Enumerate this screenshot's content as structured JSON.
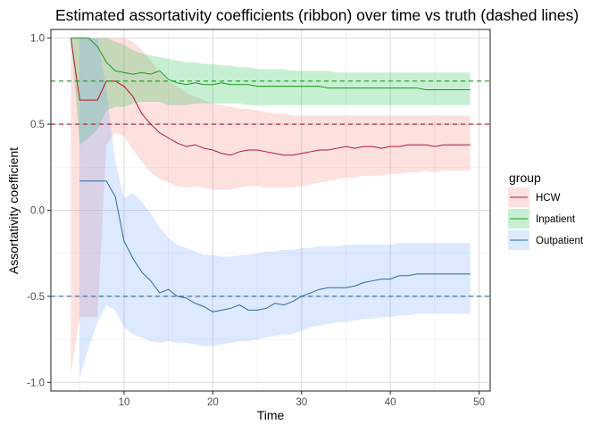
{
  "chart_data": {
    "type": "line",
    "title": "Estimated assortativity coefficients (ribbon) over time vs truth (dashed lines)",
    "xlabel": "Time",
    "ylabel": "Assortativity coefficient",
    "xlim": [
      1.75,
      51.25
    ],
    "ylim": [
      -1.05,
      1.05
    ],
    "x_ticks": [
      10,
      20,
      30,
      40,
      50
    ],
    "y_ticks": [
      -1.0,
      -0.5,
      0.0,
      0.5,
      1.0
    ],
    "x_tick_labels": [
      "10",
      "20",
      "30",
      "40",
      "50"
    ],
    "y_tick_labels": [
      "-1.0",
      "-0.5",
      "0.0",
      "0.5",
      "1.0"
    ],
    "grid": true,
    "legend": {
      "title": "group",
      "placement": "right",
      "entries": [
        "HCW",
        "Inpatient",
        "Outpatient"
      ]
    },
    "x": [
      4,
      5,
      6,
      7,
      8,
      9,
      10,
      11,
      12,
      13,
      14,
      15,
      16,
      17,
      18,
      19,
      20,
      21,
      22,
      23,
      24,
      25,
      26,
      27,
      28,
      29,
      30,
      31,
      32,
      33,
      34,
      35,
      36,
      37,
      38,
      39,
      40,
      41,
      42,
      43,
      44,
      45,
      46,
      47,
      48,
      49
    ],
    "series": [
      {
        "name": "HCW",
        "color": "#B2182B",
        "fill": "#F8766D",
        "mean": [
          1.0,
          0.64,
          0.64,
          0.64,
          0.75,
          0.75,
          0.72,
          0.66,
          0.56,
          0.5,
          0.45,
          0.42,
          0.39,
          0.37,
          0.38,
          0.36,
          0.35,
          0.33,
          0.32,
          0.34,
          0.35,
          0.35,
          0.34,
          0.33,
          0.32,
          0.32,
          0.33,
          0.34,
          0.35,
          0.35,
          0.36,
          0.37,
          0.36,
          0.37,
          0.37,
          0.36,
          0.37,
          0.37,
          0.38,
          0.38,
          0.38,
          0.37,
          0.38,
          0.38,
          0.38,
          0.38
        ],
        "lower": [
          -0.95,
          -0.62,
          -0.62,
          -0.62,
          0.38,
          0.45,
          0.43,
          0.35,
          0.28,
          0.22,
          0.18,
          0.16,
          0.14,
          0.13,
          0.14,
          0.13,
          0.12,
          0.12,
          0.12,
          0.13,
          0.14,
          0.14,
          0.13,
          0.13,
          0.13,
          0.13,
          0.14,
          0.15,
          0.16,
          0.17,
          0.18,
          0.19,
          0.19,
          0.2,
          0.2,
          0.2,
          0.21,
          0.21,
          0.22,
          0.22,
          0.23,
          0.22,
          0.23,
          0.23,
          0.23,
          0.23
        ],
        "upper": [
          1.0,
          1.0,
          1.0,
          1.0,
          1.0,
          1.0,
          1.0,
          0.98,
          0.93,
          0.87,
          0.8,
          0.75,
          0.72,
          0.68,
          0.66,
          0.64,
          0.62,
          0.61,
          0.6,
          0.59,
          0.59,
          0.58,
          0.57,
          0.56,
          0.56,
          0.55,
          0.55,
          0.55,
          0.55,
          0.55,
          0.55,
          0.55,
          0.55,
          0.55,
          0.55,
          0.55,
          0.55,
          0.55,
          0.55,
          0.55,
          0.55,
          0.55,
          0.55,
          0.55,
          0.55,
          0.55
        ]
      },
      {
        "name": "Inpatient",
        "color": "#1A9B1A",
        "fill": "#00BA38",
        "mean": [
          1.0,
          1.0,
          1.0,
          0.95,
          0.86,
          0.81,
          0.8,
          0.79,
          0.8,
          0.79,
          0.81,
          0.76,
          0.74,
          0.73,
          0.74,
          0.73,
          0.73,
          0.74,
          0.73,
          0.73,
          0.73,
          0.72,
          0.72,
          0.72,
          0.72,
          0.72,
          0.72,
          0.72,
          0.72,
          0.71,
          0.71,
          0.71,
          0.71,
          0.71,
          0.71,
          0.71,
          0.71,
          0.71,
          0.71,
          0.71,
          0.7,
          0.7,
          0.7,
          0.7,
          0.7,
          0.7
        ],
        "lower": [
          1.0,
          0.38,
          0.42,
          0.47,
          0.58,
          0.6,
          0.6,
          0.62,
          0.63,
          0.63,
          0.63,
          0.61,
          0.61,
          0.61,
          0.62,
          0.62,
          0.62,
          0.62,
          0.62,
          0.62,
          0.61,
          0.61,
          0.61,
          0.61,
          0.61,
          0.61,
          0.61,
          0.61,
          0.61,
          0.61,
          0.61,
          0.61,
          0.61,
          0.61,
          0.61,
          0.61,
          0.61,
          0.61,
          0.61,
          0.61,
          0.61,
          0.61,
          0.61,
          0.61,
          0.61,
          0.61
        ],
        "upper": [
          1.0,
          1.0,
          1.0,
          1.0,
          1.0,
          0.98,
          0.96,
          0.93,
          0.91,
          0.9,
          0.89,
          0.88,
          0.87,
          0.86,
          0.86,
          0.85,
          0.85,
          0.84,
          0.84,
          0.83,
          0.83,
          0.82,
          0.82,
          0.82,
          0.82,
          0.81,
          0.81,
          0.81,
          0.81,
          0.81,
          0.8,
          0.8,
          0.8,
          0.8,
          0.8,
          0.8,
          0.8,
          0.8,
          0.8,
          0.8,
          0.8,
          0.8,
          0.8,
          0.8,
          0.8,
          0.8
        ]
      },
      {
        "name": "Outpatient",
        "color": "#2C6A9E",
        "fill": "#619CFF",
        "mean": [
          null,
          0.17,
          0.17,
          0.17,
          0.17,
          0.08,
          -0.18,
          -0.28,
          -0.36,
          -0.41,
          -0.48,
          -0.46,
          -0.5,
          -0.51,
          -0.54,
          -0.56,
          -0.59,
          -0.58,
          -0.57,
          -0.55,
          -0.58,
          -0.58,
          -0.57,
          -0.54,
          -0.55,
          -0.53,
          -0.5,
          -0.48,
          -0.46,
          -0.45,
          -0.45,
          -0.45,
          -0.44,
          -0.42,
          -0.41,
          -0.4,
          -0.4,
          -0.38,
          -0.38,
          -0.37,
          -0.37,
          -0.37,
          -0.37,
          -0.37,
          -0.37,
          -0.37
        ],
        "lower": [
          null,
          -0.97,
          -0.8,
          -0.65,
          -0.55,
          -0.58,
          -0.68,
          -0.72,
          -0.74,
          -0.76,
          -0.77,
          -0.76,
          -0.77,
          -0.77,
          -0.78,
          -0.79,
          -0.79,
          -0.78,
          -0.77,
          -0.76,
          -0.76,
          -0.75,
          -0.74,
          -0.73,
          -0.72,
          -0.72,
          -0.7,
          -0.68,
          -0.67,
          -0.66,
          -0.65,
          -0.65,
          -0.64,
          -0.63,
          -0.63,
          -0.62,
          -0.62,
          -0.61,
          -0.61,
          -0.6,
          -0.6,
          -0.6,
          -0.6,
          -0.6,
          -0.6,
          -0.6
        ],
        "upper": [
          null,
          1.0,
          1.0,
          1.0,
          0.7,
          0.28,
          0.07,
          0.1,
          0.05,
          -0.02,
          -0.1,
          -0.16,
          -0.2,
          -0.22,
          -0.24,
          -0.26,
          -0.26,
          -0.27,
          -0.27,
          -0.26,
          -0.26,
          -0.25,
          -0.24,
          -0.24,
          -0.23,
          -0.23,
          -0.22,
          -0.22,
          -0.21,
          -0.21,
          -0.21,
          -0.2,
          -0.2,
          -0.2,
          -0.2,
          -0.2,
          -0.2,
          -0.19,
          -0.19,
          -0.19,
          -0.19,
          -0.19,
          -0.19,
          -0.19,
          -0.19,
          -0.19
        ]
      }
    ],
    "truth": [
      {
        "name": "HCW",
        "value": 0.5,
        "color": "#B2182B"
      },
      {
        "name": "Inpatient",
        "value": 0.75,
        "color": "#1A9B1A"
      },
      {
        "name": "Outpatient",
        "value": -0.5,
        "color": "#2C6A9E"
      }
    ]
  }
}
